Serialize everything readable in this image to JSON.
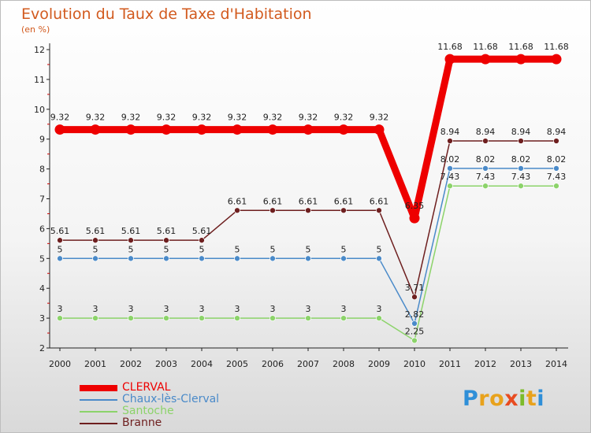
{
  "title": "Evolution du Taux de Taxe d'Habitation",
  "subtitle": "(en %)",
  "logo": {
    "letters": [
      "P",
      "r",
      "o",
      "x",
      "i",
      "t",
      "i"
    ],
    "colors": [
      "#2f8fd8",
      "#e8a21c",
      "#e8a21c",
      "#e84b20",
      "#7cbb2a",
      "#e8a21c",
      "#2f8fd8"
    ]
  },
  "chart_data": {
    "type": "line",
    "x": [
      "2000",
      "2001",
      "2002",
      "2003",
      "2004",
      "2005",
      "2006",
      "2007",
      "2008",
      "2009",
      "2010",
      "2011",
      "2012",
      "2013",
      "2014"
    ],
    "ylim": [
      2,
      12
    ],
    "yticks": [
      "2",
      "3",
      "4",
      "5",
      "6",
      "7",
      "8",
      "9",
      "10",
      "11",
      "12"
    ],
    "grid": false,
    "legend_position": "bottom-left",
    "series": [
      {
        "name": "CLERVAL",
        "color": "#ee0000",
        "values": [
          9.32,
          9.32,
          9.32,
          9.32,
          9.32,
          9.32,
          9.32,
          9.32,
          9.32,
          9.32,
          6.35,
          11.68,
          11.68,
          11.68,
          11.68
        ],
        "labels": [
          "9.32",
          "9.32",
          "9.32",
          "9.32",
          "9.32",
          "9.32",
          "9.32",
          "9.32",
          "9.32",
          "9.32",
          "6.35",
          "11.68",
          "11.68",
          "11.68",
          "11.68"
        ]
      },
      {
        "name": "Chaux-lès-Clerval",
        "color": "#4a8ac9",
        "values": [
          5,
          5,
          5,
          5,
          5,
          5,
          5,
          5,
          5,
          5,
          2.82,
          8.02,
          8.02,
          8.02,
          8.02
        ],
        "labels": [
          "5",
          "5",
          "5",
          "5",
          "5",
          "5",
          "5",
          "5",
          "5",
          "5",
          "2.82",
          "8.02",
          "8.02",
          "8.02",
          "8.02"
        ]
      },
      {
        "name": "Santoche",
        "color": "#8cd36a",
        "values": [
          3,
          3,
          3,
          3,
          3,
          3,
          3,
          3,
          3,
          3,
          2.25,
          7.43,
          7.43,
          7.43,
          7.43
        ],
        "labels": [
          "3",
          "3",
          "3",
          "3",
          "3",
          "3",
          "3",
          "3",
          "3",
          "3",
          "2.25",
          "7.43",
          "7.43",
          "7.43",
          "7.43"
        ]
      },
      {
        "name": "Branne",
        "color": "#6e1f1f",
        "values": [
          5.61,
          5.61,
          5.61,
          5.61,
          5.61,
          6.61,
          6.61,
          6.61,
          6.61,
          6.61,
          3.71,
          8.94,
          8.94,
          8.94,
          8.94
        ],
        "labels": [
          "5.61",
          "5.61",
          "5.61",
          "5.61",
          "5.61",
          "6.61",
          "6.61",
          "6.61",
          "6.61",
          "6.61",
          "3.71",
          "8.94",
          "8.94",
          "8.94",
          "8.94"
        ]
      }
    ]
  }
}
